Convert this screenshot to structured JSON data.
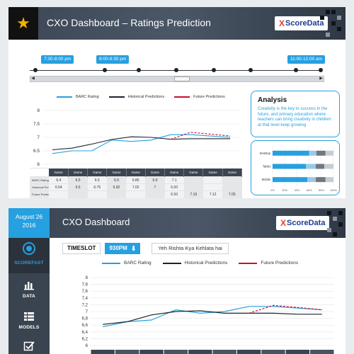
{
  "panel1": {
    "title": "CXO Dashboard – Ratings Prediction",
    "brand": {
      "mark": "X",
      "text": "ScoreData"
    },
    "timeline": {
      "tags": [
        "7:30-8:00 pm",
        "8:00-8:30 pm",
        "11:00-12:00 am"
      ],
      "dots": 8
    },
    "scrollbar": {
      "left_arrow": "◀",
      "right_arrow": "▶"
    },
    "legend": [
      "BARC Rating",
      "Historical Predictions",
      "Future Predictions"
    ],
    "colors": {
      "barc": "#26a0e0",
      "historical": "#1d232b",
      "future": "#c8102e",
      "accent": "#26a0e0"
    },
    "table": {
      "headers": [
        "Game",
        "Game",
        "Game",
        "Game",
        "Game",
        "Game",
        "Game",
        "Game",
        "Game",
        "Game"
      ],
      "rows": [
        {
          "label": "BARC Ratings",
          "values": [
            "6.4",
            "6.5",
            "6.5",
            "6.9",
            "6.85",
            "6.9",
            "7.1",
            "",
            "",
            ""
          ]
        },
        {
          "label": "Historical Predictions",
          "values": [
            "6.54",
            "6.6",
            "6.75",
            "6.92",
            "7.02",
            "7",
            "6.93",
            "",
            "",
            ""
          ]
        },
        {
          "label": "Future Predictions",
          "values": [
            "",
            "",
            "",
            "",
            "",
            "",
            "6.93",
            "7.19",
            "7.12",
            "7.05"
          ]
        }
      ]
    },
    "analysis": {
      "heading": "Analysis",
      "body": "Creativity is the key to success in the future, and primary education where teachers can bring creativity in children at that level keep growing"
    },
    "bar_chart": {
      "categories": [
        "Desktop",
        "Tablet",
        "Mobile"
      ],
      "ticks": [
        "0%",
        "20%",
        "40%",
        "60%",
        "80%",
        "100%"
      ]
    }
  },
  "panel2": {
    "sidebar": {
      "date_line1": "August 26",
      "date_line2": "2016",
      "active": "SCOREFAST",
      "items": [
        "DATA",
        "MODELS"
      ]
    },
    "title": "CXO Dashboard",
    "brand": {
      "mark": "X",
      "text": "ScoreData"
    },
    "timeslot": {
      "label": "TIMESLOT",
      "value": "930PM",
      "show": "Yeh Rishta Kya Kehlata hai"
    },
    "legend": [
      "BARC Rating",
      "Historical Predictions",
      "Future Predictions"
    ]
  },
  "chart_data": [
    {
      "type": "line",
      "x": [
        1,
        2,
        3,
        4,
        5,
        6,
        7,
        8,
        9,
        10
      ],
      "series": [
        {
          "name": "BARC Rating",
          "values": [
            6.4,
            6.5,
            6.5,
            6.9,
            6.85,
            6.9,
            7.1,
            7.1,
            7.05,
            7.0
          ]
        },
        {
          "name": "Historical Predictions",
          "values": [
            6.54,
            6.6,
            6.75,
            6.92,
            7.02,
            7.0,
            6.93,
            6.95,
            6.95,
            6.95
          ]
        },
        {
          "name": "Future Predictions",
          "values": [
            null,
            null,
            null,
            null,
            null,
            null,
            6.93,
            7.19,
            7.12,
            7.05
          ]
        }
      ],
      "ylim": [
        6,
        8
      ],
      "yticks": [
        6,
        6.5,
        7,
        7.5,
        8
      ],
      "legend": "top"
    },
    {
      "type": "bar",
      "orientation": "horizontal",
      "stacked": true,
      "categories": [
        "Desktop",
        "Tablet",
        "Mobile"
      ],
      "series": [
        {
          "values": [
            60,
            55,
            57
          ],
          "color": "#26a0e0"
        },
        {
          "values": [
            12,
            16,
            14
          ],
          "color": "#9ac9e8"
        },
        {
          "values": [
            15,
            14,
            16
          ],
          "color": "#6f7782"
        },
        {
          "values": [
            13,
            15,
            13
          ],
          "color": "#c7ccd2"
        }
      ],
      "xlim": [
        0,
        100
      ]
    },
    {
      "type": "line",
      "x": [
        1,
        2,
        3,
        4,
        5,
        6,
        7,
        8,
        9,
        10
      ],
      "series": [
        {
          "name": "BARC Rating",
          "values": [
            6.55,
            6.7,
            6.75,
            7.05,
            6.95,
            7.0,
            7.15,
            7.15,
            7.1,
            7.05
          ]
        },
        {
          "name": "Historical Predictions",
          "values": [
            6.62,
            6.7,
            6.9,
            7.0,
            7.02,
            6.95,
            6.95,
            6.95,
            6.92,
            6.92
          ]
        },
        {
          "name": "Future Predictions",
          "values": [
            null,
            null,
            null,
            null,
            null,
            null,
            6.95,
            7.18,
            7.12,
            7.05
          ]
        }
      ],
      "ylim": [
        6,
        8
      ],
      "yticks": [
        6,
        6.2,
        6.4,
        6.6,
        6.8,
        7,
        7.2,
        7.4,
        7.6,
        7.8,
        8
      ],
      "ytick_labels": [
        "6",
        "6,2",
        "6,4",
        "6,6",
        "6,8",
        "7",
        "7,2",
        "7,4",
        "7,6",
        "7,8",
        "8"
      ],
      "legend": "top"
    }
  ]
}
